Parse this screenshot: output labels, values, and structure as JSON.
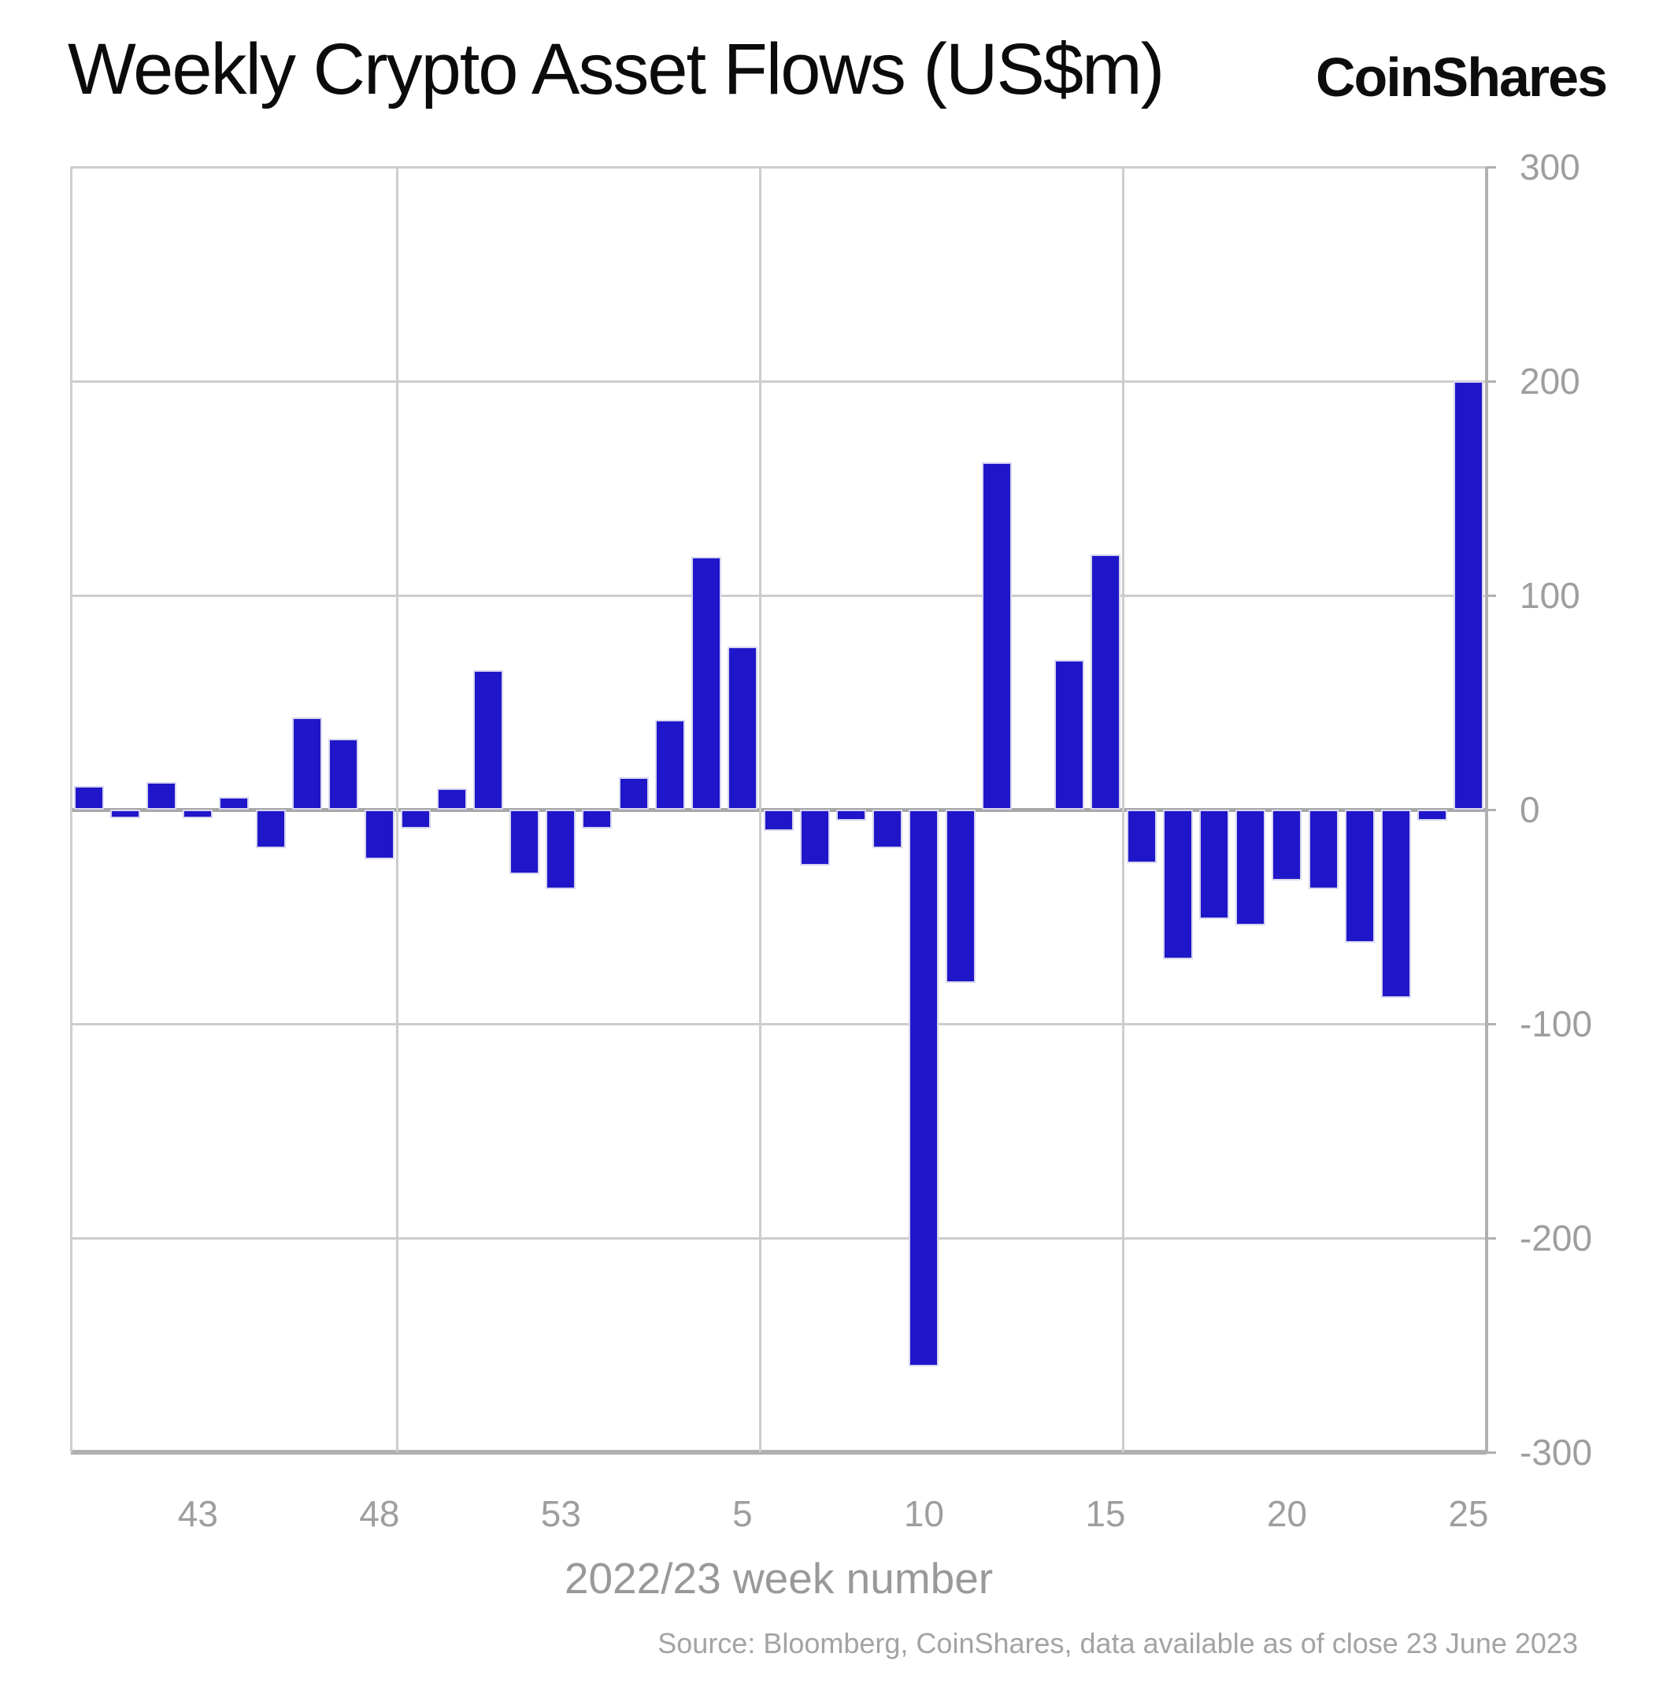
{
  "header": {
    "title": "Weekly Crypto Asset Flows (US$m)",
    "logo": "CoinShares"
  },
  "chart_data": {
    "type": "bar",
    "title": "Weekly Crypto Asset Flows (US$m)",
    "xlabel": "2022/23 week number",
    "ylabel": "",
    "ylim": [
      -300,
      300
    ],
    "grid": "on",
    "legend": "none",
    "categories": [
      "40",
      "41",
      "42",
      "43",
      "44",
      "45",
      "46",
      "47",
      "48",
      "49",
      "50",
      "51",
      "52",
      "53",
      "1",
      "2",
      "3",
      "4",
      "5",
      "6",
      "7",
      "8",
      "9",
      "10",
      "11",
      "12",
      "13",
      "14",
      "15",
      "16",
      "17",
      "18",
      "19",
      "20",
      "21",
      "22",
      "23",
      "24",
      "25"
    ],
    "values": [
      11,
      -4,
      13,
      -4,
      6,
      -18,
      43,
      33,
      -23,
      -9,
      10,
      65,
      -30,
      -37,
      -9,
      15,
      42,
      118,
      76,
      -10,
      -26,
      -5,
      -18,
      -260,
      -81,
      162,
      0,
      70,
      119,
      -25,
      -70,
      -51,
      -54,
      -33,
      -37,
      -62,
      -88,
      -5,
      200
    ],
    "xtick_labels": [
      "43",
      "48",
      "53",
      "5",
      "10",
      "15",
      "20",
      "25"
    ],
    "xtick_indices": [
      3,
      8,
      13,
      18,
      23,
      28,
      33,
      38
    ],
    "ytick_labels": [
      "300",
      "200",
      "100",
      "0",
      "-100",
      "-200",
      "-300"
    ],
    "ytick_values": [
      300,
      200,
      100,
      0,
      -100,
      -200,
      -300
    ],
    "source": "Source: Bloomberg, CoinShares, data available as of close 23 June 2023"
  },
  "colors": {
    "bar": "#2016c9",
    "bar_outline": "#d6d6ef",
    "grid": "#cdcdcd",
    "zero_line": "#a8a8a8",
    "axis": "#b0b0b0",
    "tick_label": "#9e9e9e",
    "axis_title": "#999999",
    "source_text": "#a3a3a3",
    "title_text": "#0b0b0b"
  }
}
